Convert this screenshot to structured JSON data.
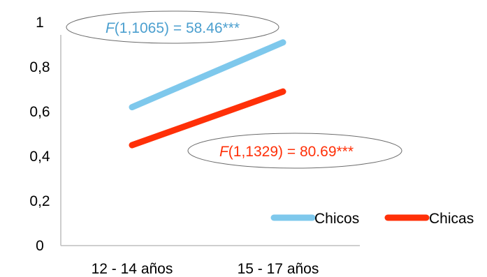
{
  "chart_data": {
    "type": "line",
    "categories": [
      "12 - 14 años",
      "15 - 17 años"
    ],
    "series": [
      {
        "name": "Chicos",
        "values": [
          0.62,
          0.91
        ],
        "color": "#7ec8ec"
      },
      {
        "name": "Chicas",
        "values": [
          0.45,
          0.69
        ],
        "color": "#ff3008"
      }
    ],
    "ylim": [
      0,
      1
    ],
    "yticks": [
      {
        "value": 0,
        "label": "0"
      },
      {
        "value": 0.2,
        "label": "0,2"
      },
      {
        "value": 0.4,
        "label": "0,4"
      },
      {
        "value": 0.6,
        "label": "0,6"
      },
      {
        "value": 0.8,
        "label": "0,8"
      },
      {
        "value": 1,
        "label": "1"
      }
    ],
    "grid": false,
    "legend": "bottom-right",
    "annotations": [
      {
        "series": "Chicos",
        "prefix": "F",
        "text": "(1,1065) = 58.46***",
        "color": "#4b9fcf"
      },
      {
        "series": "Chicas",
        "prefix": "F",
        "text": "(1,1329) = 80.69***",
        "color": "#ff3008"
      }
    ]
  }
}
